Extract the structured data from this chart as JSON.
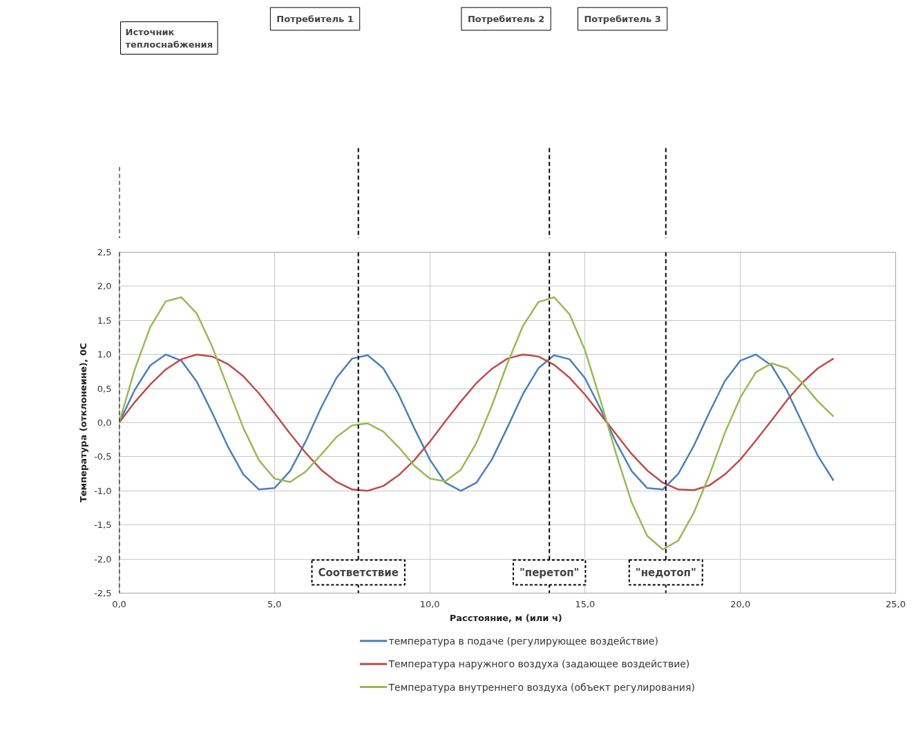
{
  "chart_data": {
    "type": "line",
    "xlabel": "Расстояние,  м (или ч)",
    "ylabel": "Температура (отклонеине), 0С",
    "x": [
      0,
      0.5,
      1,
      1.5,
      2,
      2.5,
      3,
      3.5,
      4,
      4.5,
      5,
      5.5,
      6,
      6.5,
      7,
      7.5,
      8,
      8.5,
      9,
      9.5,
      10,
      10.5,
      11,
      11.5,
      12,
      12.5,
      13,
      13.5,
      14,
      14.5,
      15,
      15.5,
      16,
      16.5,
      17,
      17.5,
      18,
      18.5,
      19,
      19.5,
      20,
      20.5,
      21,
      21.5,
      22,
      22.5,
      23
    ],
    "series": [
      {
        "name": "температура в подаче (регулирующее воздействие)",
        "color": "#4a7ebb",
        "values": [
          0,
          0.48,
          0.84,
          1.0,
          0.91,
          0.6,
          0.14,
          -0.35,
          -0.76,
          -0.98,
          -0.96,
          -0.71,
          -0.28,
          0.22,
          0.66,
          0.94,
          0.99,
          0.8,
          0.41,
          -0.08,
          -0.54,
          -0.88,
          -1.0,
          -0.88,
          -0.54,
          -0.07,
          0.42,
          0.8,
          0.99,
          0.93,
          0.65,
          0.2,
          -0.29,
          -0.71,
          -0.96,
          -0.98,
          -0.75,
          -0.34,
          0.15,
          0.61,
          0.91,
          1.0,
          0.84,
          0.47,
          -0.01,
          -0.49,
          -0.85
        ]
      },
      {
        "name": "Температура наружного воздуха (задающее воздействие)",
        "color": "#be4b48",
        "values": [
          0,
          0.3,
          0.56,
          0.78,
          0.93,
          1.0,
          0.97,
          0.86,
          0.68,
          0.43,
          0.14,
          -0.16,
          -0.44,
          -0.69,
          -0.87,
          -0.98,
          -1.0,
          -0.93,
          -0.77,
          -0.55,
          -0.28,
          0.02,
          0.31,
          0.58,
          0.79,
          0.94,
          1.0,
          0.97,
          0.85,
          0.66,
          0.41,
          0.12,
          -0.17,
          -0.46,
          -0.7,
          -0.88,
          -0.98,
          -0.99,
          -0.92,
          -0.76,
          -0.54,
          -0.26,
          0.03,
          0.33,
          0.59,
          0.8,
          0.94
        ]
      },
      {
        "name": "Температура внутреннего воздуха (объект регулирования)",
        "color": "#98b954",
        "values": [
          0,
          0.78,
          1.4,
          1.78,
          1.84,
          1.6,
          1.11,
          0.51,
          -0.08,
          -0.55,
          -0.82,
          -0.87,
          -0.72,
          -0.47,
          -0.21,
          -0.04,
          -0.01,
          -0.13,
          -0.36,
          -0.63,
          -0.82,
          -0.86,
          -0.69,
          -0.3,
          0.25,
          0.87,
          1.42,
          1.77,
          1.84,
          1.59,
          1.06,
          0.32,
          -0.46,
          -1.17,
          -1.66,
          -1.86,
          -1.73,
          -1.32,
          -0.77,
          -0.15,
          0.37,
          0.74,
          0.87,
          0.8,
          0.58,
          0.31,
          0.09
        ]
      }
    ],
    "xlim": [
      0,
      25
    ],
    "xticks": [
      {
        "value": 0,
        "label": "0,0"
      },
      {
        "value": 5,
        "label": "5,0"
      },
      {
        "value": 10,
        "label": "10,0"
      },
      {
        "value": 15,
        "label": "15,0"
      },
      {
        "value": 20,
        "label": "20,0"
      },
      {
        "value": 25,
        "label": "25,0"
      }
    ],
    "ylim": [
      -2.5,
      2.5
    ],
    "yticks": [
      {
        "value": -2.5,
        "label": "-2,5"
      },
      {
        "value": -2,
        "label": "-2,0"
      },
      {
        "value": -1.5,
        "label": "-1,5"
      },
      {
        "value": -1,
        "label": "-1,0"
      },
      {
        "value": -0.5,
        "label": "-0,5"
      },
      {
        "value": 0,
        "label": "0,0"
      },
      {
        "value": 0.5,
        "label": "0,5"
      },
      {
        "value": 1,
        "label": "1,0"
      },
      {
        "value": 1.5,
        "label": "1,5"
      },
      {
        "value": 2,
        "label": "2,0"
      },
      {
        "value": 2.5,
        "label": "2,5"
      }
    ],
    "ref_lines": [
      {
        "axis": "x",
        "value": 0,
        "label": null,
        "color": "#000000",
        "line_style": "dashed"
      },
      {
        "axis": "x",
        "value": 7.7,
        "label": "Соответствие",
        "color": "#000000",
        "line_style": "dashed"
      },
      {
        "axis": "x",
        "value": 13.85,
        "label": "\"перетоп\"",
        "color": "#000000",
        "line_style": "dashed"
      },
      {
        "axis": "x",
        "value": 17.6,
        "label": "\"недотоп\"",
        "color": "#000000",
        "line_style": "dashed"
      }
    ],
    "annotations": [
      "Источник теплоснабжения",
      "Потребитель 1",
      "Потребитель 2",
      "Потребитель 3"
    ],
    "grid": true,
    "legend": "bottom"
  }
}
